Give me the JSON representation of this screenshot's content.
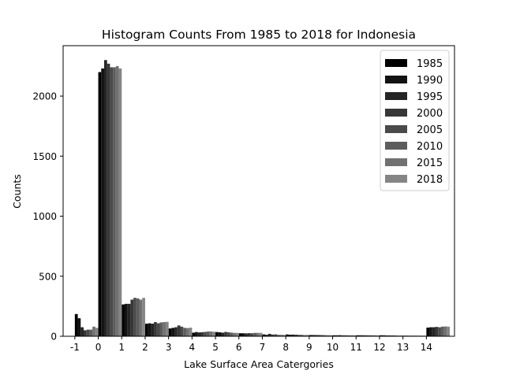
{
  "chart_data": {
    "type": "bar",
    "title": "Histogram Counts From 1985 to 2018 for Indonesia",
    "xlabel": "Lake Surface Area Catergories",
    "ylabel": "Counts",
    "categories": [
      "-1",
      "0",
      "1",
      "2",
      "3",
      "4",
      "5",
      "6",
      "7",
      "8",
      "9",
      "10",
      "11",
      "12",
      "13",
      "14"
    ],
    "xlim": [
      -1.5,
      15.2
    ],
    "ylim": [
      0,
      2420
    ],
    "yticks": [
      0,
      500,
      1000,
      1500,
      2000
    ],
    "legend_position": "top-right",
    "colors": [
      "#000000",
      "#121212",
      "#252525",
      "#373737",
      "#4a4a4a",
      "#5d5d5d",
      "#717171",
      "#858585"
    ],
    "series": [
      {
        "name": "1985",
        "values": [
          185,
          2200,
          265,
          105,
          65,
          30,
          35,
          25,
          15,
          15,
          10,
          8,
          8,
          8,
          5,
          72
        ]
      },
      {
        "name": "1990",
        "values": [
          150,
          2230,
          270,
          108,
          70,
          35,
          33,
          25,
          12,
          13,
          10,
          8,
          8,
          8,
          5,
          75
        ]
      },
      {
        "name": "1995",
        "values": [
          75,
          2300,
          270,
          105,
          75,
          32,
          30,
          24,
          20,
          14,
          10,
          9,
          8,
          7,
          5,
          75
        ]
      },
      {
        "name": "2000",
        "values": [
          50,
          2270,
          305,
          118,
          90,
          34,
          36,
          26,
          14,
          13,
          10,
          8,
          8,
          7,
          5,
          78
        ]
      },
      {
        "name": "2005",
        "values": [
          55,
          2240,
          320,
          108,
          80,
          36,
          33,
          25,
          16,
          12,
          10,
          8,
          8,
          7,
          5,
          75
        ]
      },
      {
        "name": "2010",
        "values": [
          55,
          2240,
          315,
          115,
          70,
          40,
          30,
          28,
          12,
          12,
          9,
          8,
          8,
          7,
          5,
          80
        ]
      },
      {
        "name": "2015",
        "values": [
          80,
          2250,
          305,
          118,
          68,
          40,
          28,
          28,
          12,
          10,
          9,
          8,
          8,
          6,
          5,
          82
        ]
      },
      {
        "name": "2018",
        "values": [
          70,
          2230,
          320,
          120,
          72,
          38,
          28,
          28,
          12,
          12,
          9,
          8,
          8,
          7,
          5,
          80
        ]
      }
    ]
  }
}
